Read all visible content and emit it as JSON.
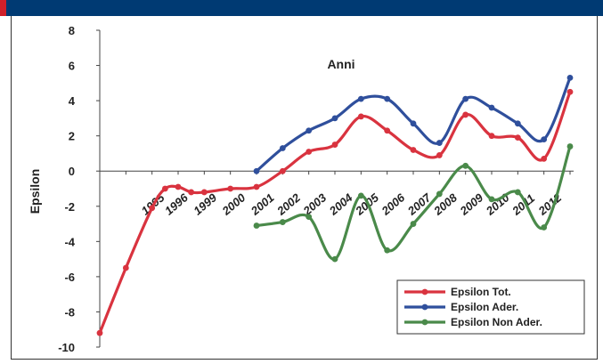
{
  "colors": {
    "header_bar": "#003a73",
    "header_accent": "#d0202a",
    "tot": "#d9333f",
    "ader": "#2f4f9c",
    "non_ader": "#4a8a4a"
  },
  "chart_data": {
    "type": "line",
    "title": "Anni",
    "ylabel": "Epsilon",
    "xlabel": "",
    "ylim": [
      -10,
      8
    ],
    "yticks": [
      8,
      6,
      4,
      2,
      0,
      -2,
      -4,
      -6,
      -8,
      -10
    ],
    "grid": false,
    "legend": "bottom-right",
    "categories": [
      "1995",
      "1996",
      "1999",
      "2000",
      "2001",
      "2002",
      "2003",
      "2004",
      "2005",
      "2006",
      "2007",
      "2008",
      "2009",
      "2010",
      "2011",
      "2012"
    ],
    "series": [
      {
        "name": "Epsilon Tot.",
        "color_key": "tot",
        "points": [
          [
            0.0,
            -9.2
          ],
          [
            1.0,
            -5.5
          ],
          [
            2.0,
            -2.1
          ],
          [
            2.5,
            -1.0
          ],
          [
            3.0,
            -0.9
          ],
          [
            3.5,
            -1.2
          ],
          [
            4.0,
            -1.2
          ],
          [
            5.0,
            -1.0
          ],
          [
            6.0,
            -0.9
          ],
          [
            7.0,
            0.0
          ],
          [
            8.0,
            1.1
          ],
          [
            9.0,
            1.5
          ],
          [
            10.0,
            3.1
          ],
          [
            11.0,
            2.3
          ],
          [
            12.0,
            1.2
          ],
          [
            13.0,
            0.9
          ],
          [
            14.0,
            3.2
          ],
          [
            15.0,
            2.0
          ],
          [
            16.0,
            1.9
          ],
          [
            17.0,
            0.7
          ],
          [
            18.0,
            4.5
          ]
        ]
      },
      {
        "name": "Epsilon Ader.",
        "color_key": "ader",
        "points": [
          [
            6.0,
            0.0
          ],
          [
            7.0,
            1.3
          ],
          [
            8.0,
            2.3
          ],
          [
            9.0,
            3.0
          ],
          [
            10.0,
            4.1
          ],
          [
            11.0,
            4.1
          ],
          [
            12.0,
            2.7
          ],
          [
            13.0,
            1.6
          ],
          [
            14.0,
            4.1
          ],
          [
            15.0,
            3.6
          ],
          [
            16.0,
            2.7
          ],
          [
            17.0,
            1.8
          ],
          [
            18.0,
            5.3
          ]
        ]
      },
      {
        "name": "Epsilon Non Ader.",
        "color_key": "non_ader",
        "points": [
          [
            6.0,
            -3.1
          ],
          [
            7.0,
            -2.9
          ],
          [
            8.0,
            -2.6
          ],
          [
            9.0,
            -5.0
          ],
          [
            10.0,
            -1.4
          ],
          [
            11.0,
            -4.5
          ],
          [
            12.0,
            -3.0
          ],
          [
            13.0,
            -1.3
          ],
          [
            14.0,
            0.3
          ],
          [
            15.0,
            -1.6
          ],
          [
            16.0,
            -1.2
          ],
          [
            17.0,
            -3.2
          ],
          [
            18.0,
            1.4
          ]
        ]
      }
    ]
  }
}
